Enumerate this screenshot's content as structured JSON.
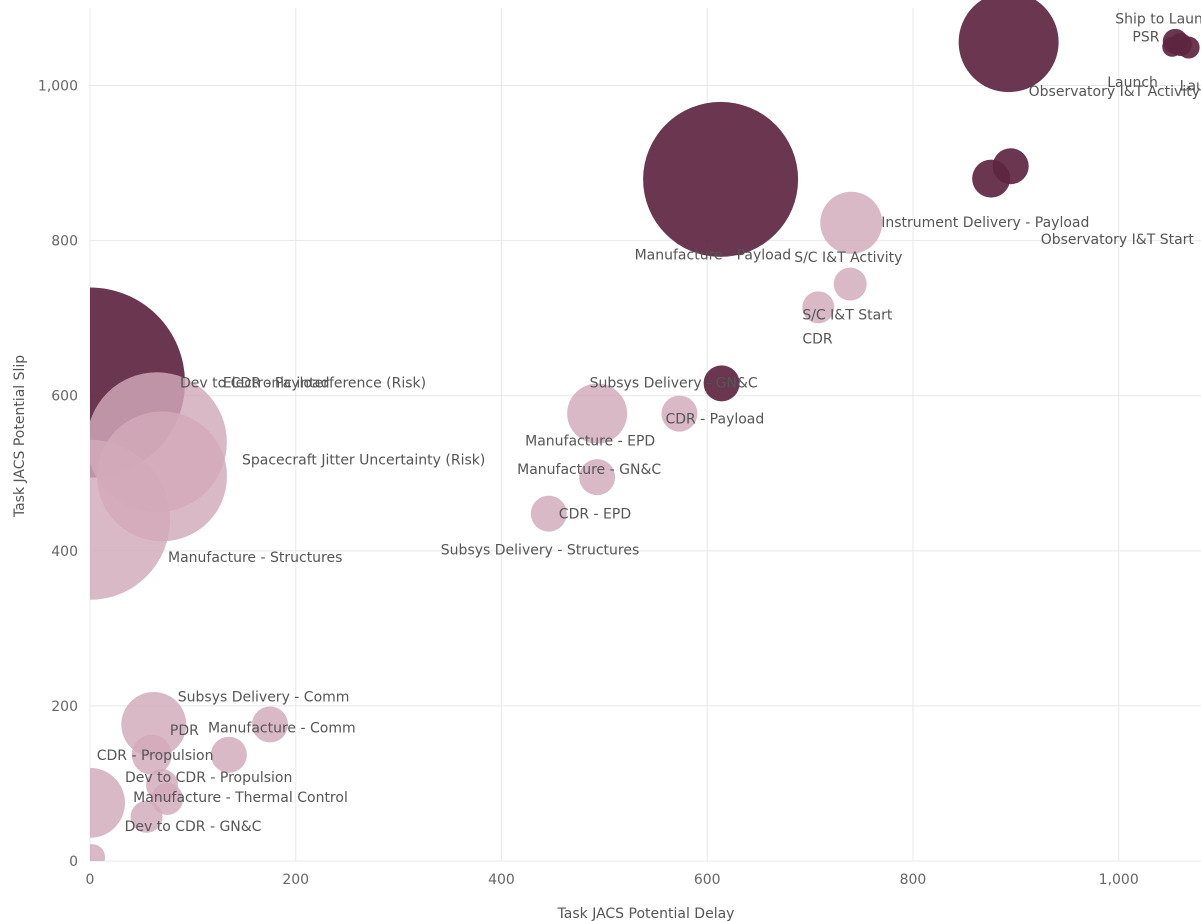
{
  "chart_data": {
    "type": "scatter",
    "xlabel": "Task JACS Potential Delay",
    "ylabel": "Task JACS Potential Slip",
    "xlim": [
      0,
      1080
    ],
    "ylim": [
      0,
      1100
    ],
    "x_ticks": [
      0,
      200,
      400,
      600,
      800,
      1000
    ],
    "y_ticks": [
      0,
      200,
      400,
      600,
      800,
      1000
    ],
    "x_tick_labels": [
      "0",
      "200",
      "400",
      "600",
      "800",
      "1,000"
    ],
    "y_tick_labels": [
      "0",
      "200",
      "400",
      "600",
      "800",
      "1,000"
    ],
    "grid": true,
    "colors": {
      "dark": "#5e2540",
      "light": "#d2a9ba"
    },
    "points": [
      {
        "label": "Launch",
        "x": 1068,
        "y": 1049,
        "size": 22,
        "shade": "dark"
      },
      {
        "label": "PSR",
        "x": 1060,
        "y": 1053,
        "size": 23,
        "shade": "dark"
      },
      {
        "label": "Ship to Launch Site",
        "x": 1055,
        "y": 1057,
        "size": 25,
        "shade": "dark"
      },
      {
        "label": "Launch",
        "x": 1052,
        "y": 1050,
        "size": 20,
        "shade": "dark"
      },
      {
        "label": "Observatory I&T Activity",
        "x": 893,
        "y": 1056,
        "size": 100,
        "shade": "dark"
      },
      {
        "label": "Observatory I&T Start",
        "x": 895,
        "y": 896,
        "size": 36,
        "shade": "dark"
      },
      {
        "label": "",
        "x": 876,
        "y": 880,
        "size": 38,
        "shade": "dark"
      },
      {
        "label": "Manufacture - Payload",
        "x": 613,
        "y": 879,
        "size": 155,
        "shade": "dark"
      },
      {
        "label": "Instrument Delivery - Payload",
        "x": 740,
        "y": 823,
        "size": 62,
        "shade": "light"
      },
      {
        "label": "S/C I&T Activity",
        "x": 739,
        "y": 744,
        "size": 33,
        "shade": "light"
      },
      {
        "label": "S/C I&T Start",
        "x": 708,
        "y": 714,
        "size": 32,
        "shade": "light"
      },
      {
        "label": "CDR",
        "x": 708,
        "y": 714,
        "size": 0,
        "shade": "light"
      },
      {
        "label": "Subsys Delivery - GN&C",
        "x": 614,
        "y": 616,
        "size": 36,
        "shade": "dark"
      },
      {
        "label": "CDR - Payload",
        "x": 573,
        "y": 577,
        "size": 36,
        "shade": "light"
      },
      {
        "label": "Manufacture - EPD",
        "x": 493,
        "y": 577,
        "size": 60,
        "shade": "light"
      },
      {
        "label": "Manufacture - GN&C",
        "x": 493,
        "y": 495,
        "size": 36,
        "shade": "light"
      },
      {
        "label": "CDR - EPD",
        "x": 446,
        "y": 448,
        "size": 36,
        "shade": "light"
      },
      {
        "label": "Subsys Delivery - Structures",
        "x": 446,
        "y": 448,
        "size": 0,
        "shade": "light"
      },
      {
        "label": "Dev to CDR - Payload",
        "x": 0,
        "y": 617,
        "size": 190,
        "shade": "dark"
      },
      {
        "label": "Electronic interference (Risk)",
        "x": 65,
        "y": 540,
        "size": 140,
        "shade": "light"
      },
      {
        "label": "Spacecraft Jitter Uncertainty (Risk)",
        "x": 70,
        "y": 496,
        "size": 130,
        "shade": "light"
      },
      {
        "label": "Manufacture - Structures",
        "x": 0,
        "y": 440,
        "size": 160,
        "shade": "light"
      },
      {
        "label": "Subsys Delivery - Comm",
        "x": 62,
        "y": 176,
        "size": 65,
        "shade": "light"
      },
      {
        "label": "Manufacture - Comm",
        "x": 175,
        "y": 176,
        "size": 36,
        "shade": "light"
      },
      {
        "label": "PDR",
        "x": 135,
        "y": 137,
        "size": 36,
        "shade": "light"
      },
      {
        "label": "CDR - Propulsion",
        "x": 60,
        "y": 137,
        "size": 40,
        "shade": "light"
      },
      {
        "label": "Dev to CDR - Propulsion",
        "x": 70,
        "y": 98,
        "size": 32,
        "shade": "light"
      },
      {
        "label": "Manufacture - Thermal Control",
        "x": 75,
        "y": 80,
        "size": 32,
        "shade": "light"
      },
      {
        "label": "",
        "x": 0,
        "y": 75,
        "size": 70,
        "shade": "light"
      },
      {
        "label": "Dev to CDR - GN&C",
        "x": 55,
        "y": 57,
        "size": 32,
        "shade": "light"
      },
      {
        "label": "",
        "x": 2,
        "y": 5,
        "size": 26,
        "shade": "light"
      }
    ]
  }
}
